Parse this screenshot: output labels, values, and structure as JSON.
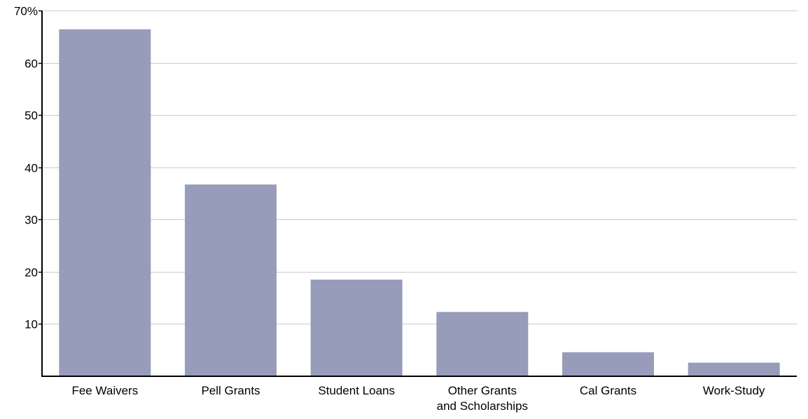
{
  "chart_data": {
    "type": "bar",
    "categories": [
      [
        "Fee Waivers"
      ],
      [
        "Pell Grants"
      ],
      [
        "Student Loans"
      ],
      [
        "Other Grants",
        "and Scholarships"
      ],
      [
        "Cal Grants"
      ],
      [
        "Work-Study"
      ]
    ],
    "values": [
      66.4,
      36.7,
      18.5,
      12.3,
      4.6,
      2.6
    ],
    "y_ticks": [
      {
        "value": 10,
        "label": "10"
      },
      {
        "value": 20,
        "label": "20"
      },
      {
        "value": 30,
        "label": "30"
      },
      {
        "value": 40,
        "label": "40"
      },
      {
        "value": 50,
        "label": "50"
      },
      {
        "value": 60,
        "label": "60"
      },
      {
        "value": 70,
        "label": "70%"
      }
    ],
    "ylim": [
      0,
      70
    ],
    "grid": true,
    "colors": {
      "bar": "#979cba",
      "grid": "#cccccc",
      "axis": "#000000"
    }
  }
}
